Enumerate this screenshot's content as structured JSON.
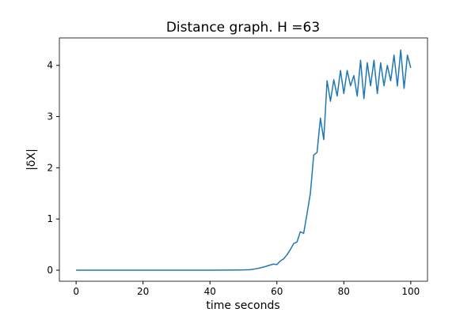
{
  "chart_data": {
    "type": "line",
    "title": "Distance graph. H =63",
    "xlabel": "time seconds",
    "ylabel": "|δX|",
    "x": [
      0,
      10,
      20,
      30,
      40,
      45,
      48,
      50,
      52,
      54,
      56,
      58,
      59,
      60,
      61,
      62,
      63,
      64,
      65,
      66,
      67,
      68,
      69,
      70,
      71,
      72,
      73,
      74,
      75,
      76,
      77,
      78,
      79,
      80,
      81,
      82,
      83,
      84,
      85,
      86,
      87,
      88,
      89,
      90,
      91,
      92,
      93,
      94,
      95,
      96,
      97,
      98,
      99,
      100
    ],
    "series": [
      {
        "name": "|δX|",
        "color": "#1f77b4",
        "values": [
          0,
          0,
          0,
          0,
          0,
          0.002,
          0.003,
          0.005,
          0.01,
          0.03,
          0.06,
          0.1,
          0.12,
          0.11,
          0.18,
          0.22,
          0.3,
          0.4,
          0.52,
          0.55,
          0.75,
          0.72,
          1.1,
          1.5,
          2.25,
          2.3,
          2.97,
          2.55,
          3.7,
          3.3,
          3.72,
          3.4,
          3.9,
          3.45,
          3.9,
          3.6,
          3.8,
          3.4,
          4.1,
          3.35,
          4.05,
          3.6,
          4.1,
          3.45,
          4.05,
          3.6,
          4.0,
          3.7,
          4.2,
          3.6,
          4.3,
          3.55,
          4.2,
          3.95
        ]
      }
    ],
    "xlim": [
      -5,
      105
    ],
    "xticks": [
      0,
      20,
      40,
      60,
      80,
      100
    ],
    "ylim": [
      -0.216,
      4.536
    ],
    "yticks": [
      0,
      1,
      2,
      3,
      4
    ]
  }
}
